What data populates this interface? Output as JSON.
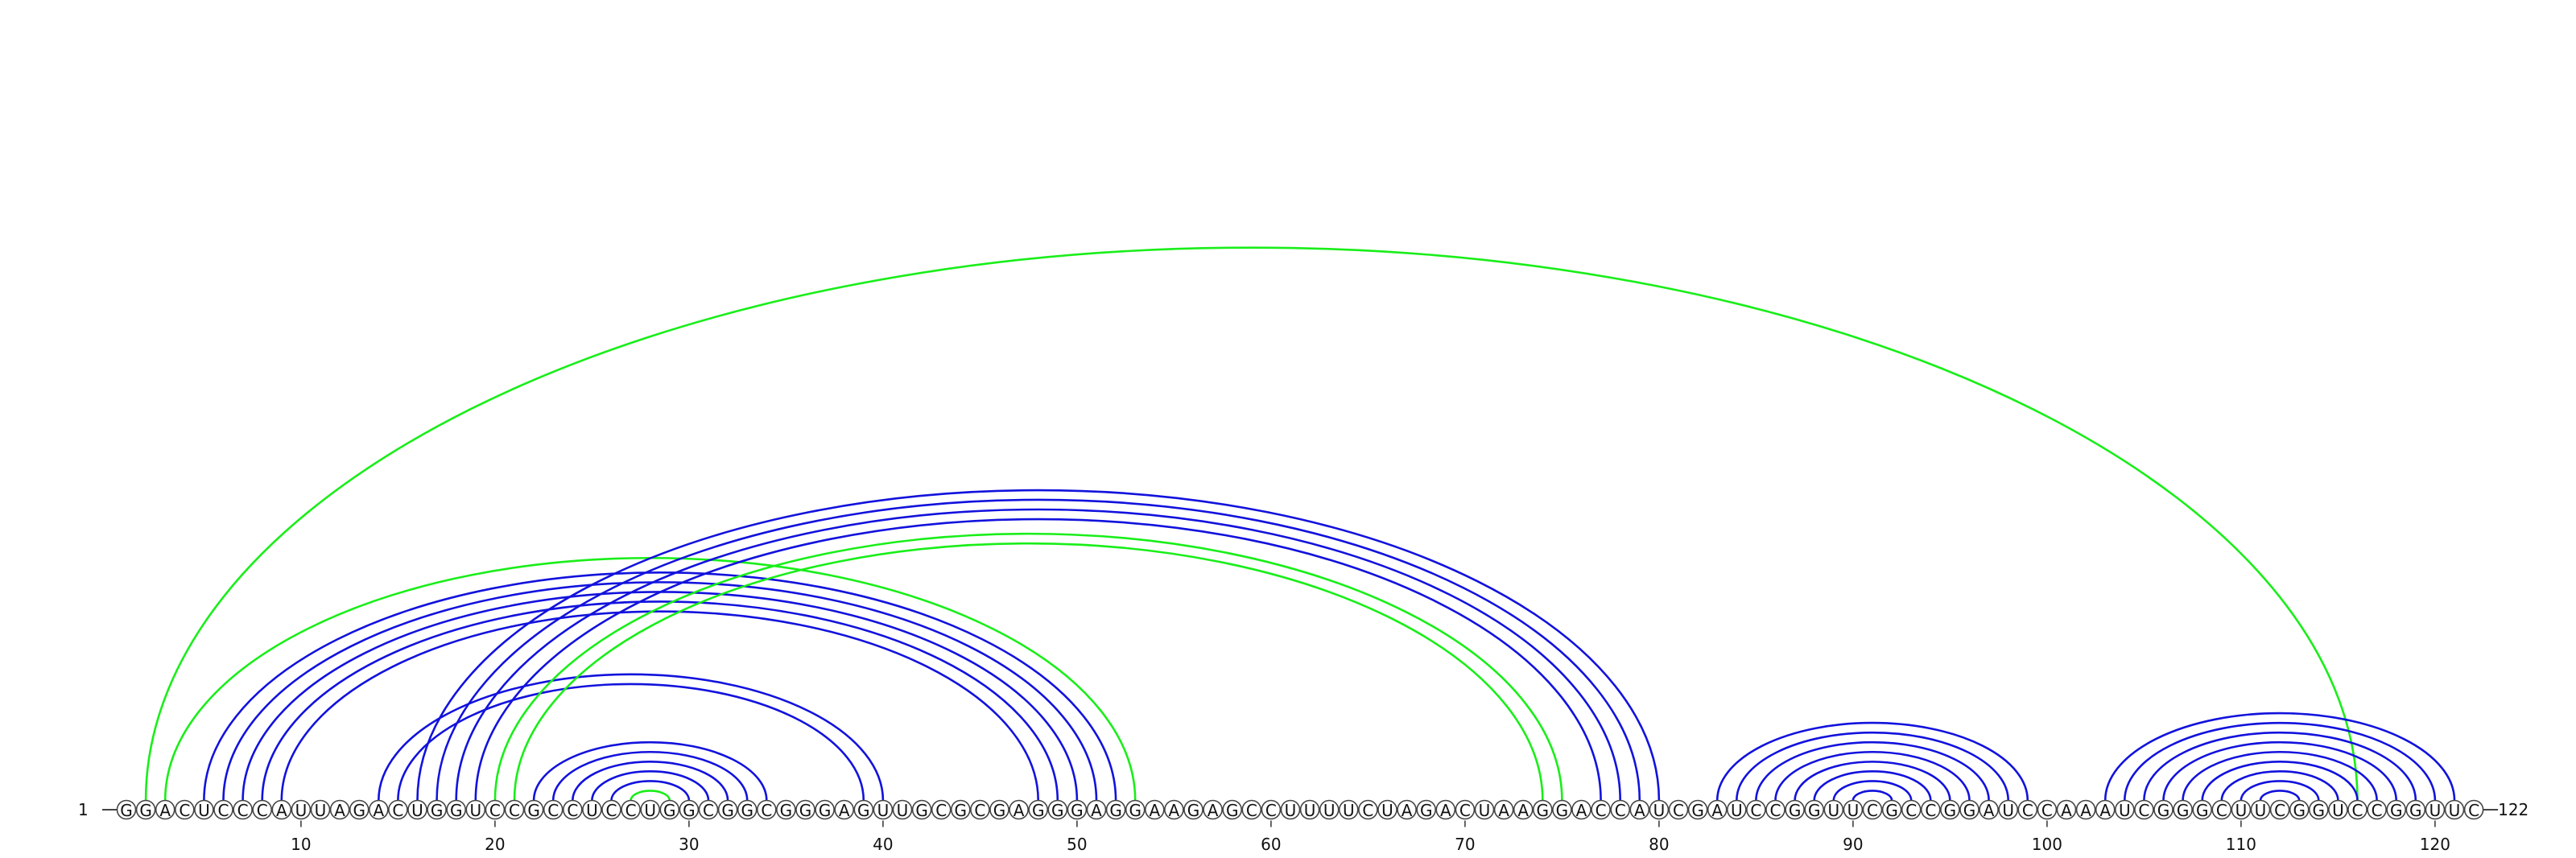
{
  "diagram": {
    "type": "arc-diagram",
    "sequence": "GGACUCCCAUUAGACUGGUCCGCCUCCUGGCGGCGGGAGUUGCGCGAGGGAGGAAGAGCCUUUUCUAGACUAAGGACCAUCGAUCCGGUUCGCCGGAUCCAAAUCGGGCUUCGGUCCGGUUC",
    "start_label": "1",
    "end_label": "122",
    "ticks": [
      "10",
      "20",
      "30",
      "40",
      "50",
      "60",
      "70",
      "80",
      "90",
      "100",
      "110",
      "120"
    ],
    "colors": {
      "blue": "#1212dd",
      "green": "#19ee19",
      "backbone": "#444444"
    },
    "arcs": [
      {
        "i": 2,
        "j": 116,
        "color": "green"
      },
      {
        "i": 3,
        "j": 53,
        "color": "green"
      },
      {
        "i": 5,
        "j": 52,
        "color": "blue"
      },
      {
        "i": 6,
        "j": 51,
        "color": "blue"
      },
      {
        "i": 7,
        "j": 50,
        "color": "blue"
      },
      {
        "i": 8,
        "j": 49,
        "color": "blue"
      },
      {
        "i": 9,
        "j": 48,
        "color": "blue"
      },
      {
        "i": 14,
        "j": 40,
        "color": "blue"
      },
      {
        "i": 15,
        "j": 39,
        "color": "blue"
      },
      {
        "i": 16,
        "j": 80,
        "color": "blue"
      },
      {
        "i": 17,
        "j": 79,
        "color": "blue"
      },
      {
        "i": 18,
        "j": 78,
        "color": "blue"
      },
      {
        "i": 19,
        "j": 77,
        "color": "blue"
      },
      {
        "i": 20,
        "j": 75,
        "color": "green"
      },
      {
        "i": 21,
        "j": 74,
        "color": "green"
      },
      {
        "i": 22,
        "j": 34,
        "color": "blue"
      },
      {
        "i": 23,
        "j": 33,
        "color": "blue"
      },
      {
        "i": 24,
        "j": 32,
        "color": "blue"
      },
      {
        "i": 25,
        "j": 31,
        "color": "blue"
      },
      {
        "i": 26,
        "j": 30,
        "color": "blue"
      },
      {
        "i": 27,
        "j": 29,
        "color": "green"
      },
      {
        "i": 83,
        "j": 99,
        "color": "blue"
      },
      {
        "i": 84,
        "j": 98,
        "color": "blue"
      },
      {
        "i": 85,
        "j": 97,
        "color": "blue"
      },
      {
        "i": 86,
        "j": 96,
        "color": "blue"
      },
      {
        "i": 87,
        "j": 95,
        "color": "blue"
      },
      {
        "i": 88,
        "j": 94,
        "color": "blue"
      },
      {
        "i": 89,
        "j": 93,
        "color": "blue"
      },
      {
        "i": 90,
        "j": 92,
        "color": "blue"
      },
      {
        "i": 103,
        "j": 121,
        "color": "blue"
      },
      {
        "i": 104,
        "j": 120,
        "color": "blue"
      },
      {
        "i": 105,
        "j": 119,
        "color": "blue"
      },
      {
        "i": 106,
        "j": 118,
        "color": "blue"
      },
      {
        "i": 107,
        "j": 117,
        "color": "blue"
      },
      {
        "i": 108,
        "j": 116,
        "color": "blue"
      },
      {
        "i": 109,
        "j": 115,
        "color": "blue"
      },
      {
        "i": 110,
        "j": 114,
        "color": "blue"
      },
      {
        "i": 111,
        "j": 113,
        "color": "blue"
      }
    ]
  }
}
